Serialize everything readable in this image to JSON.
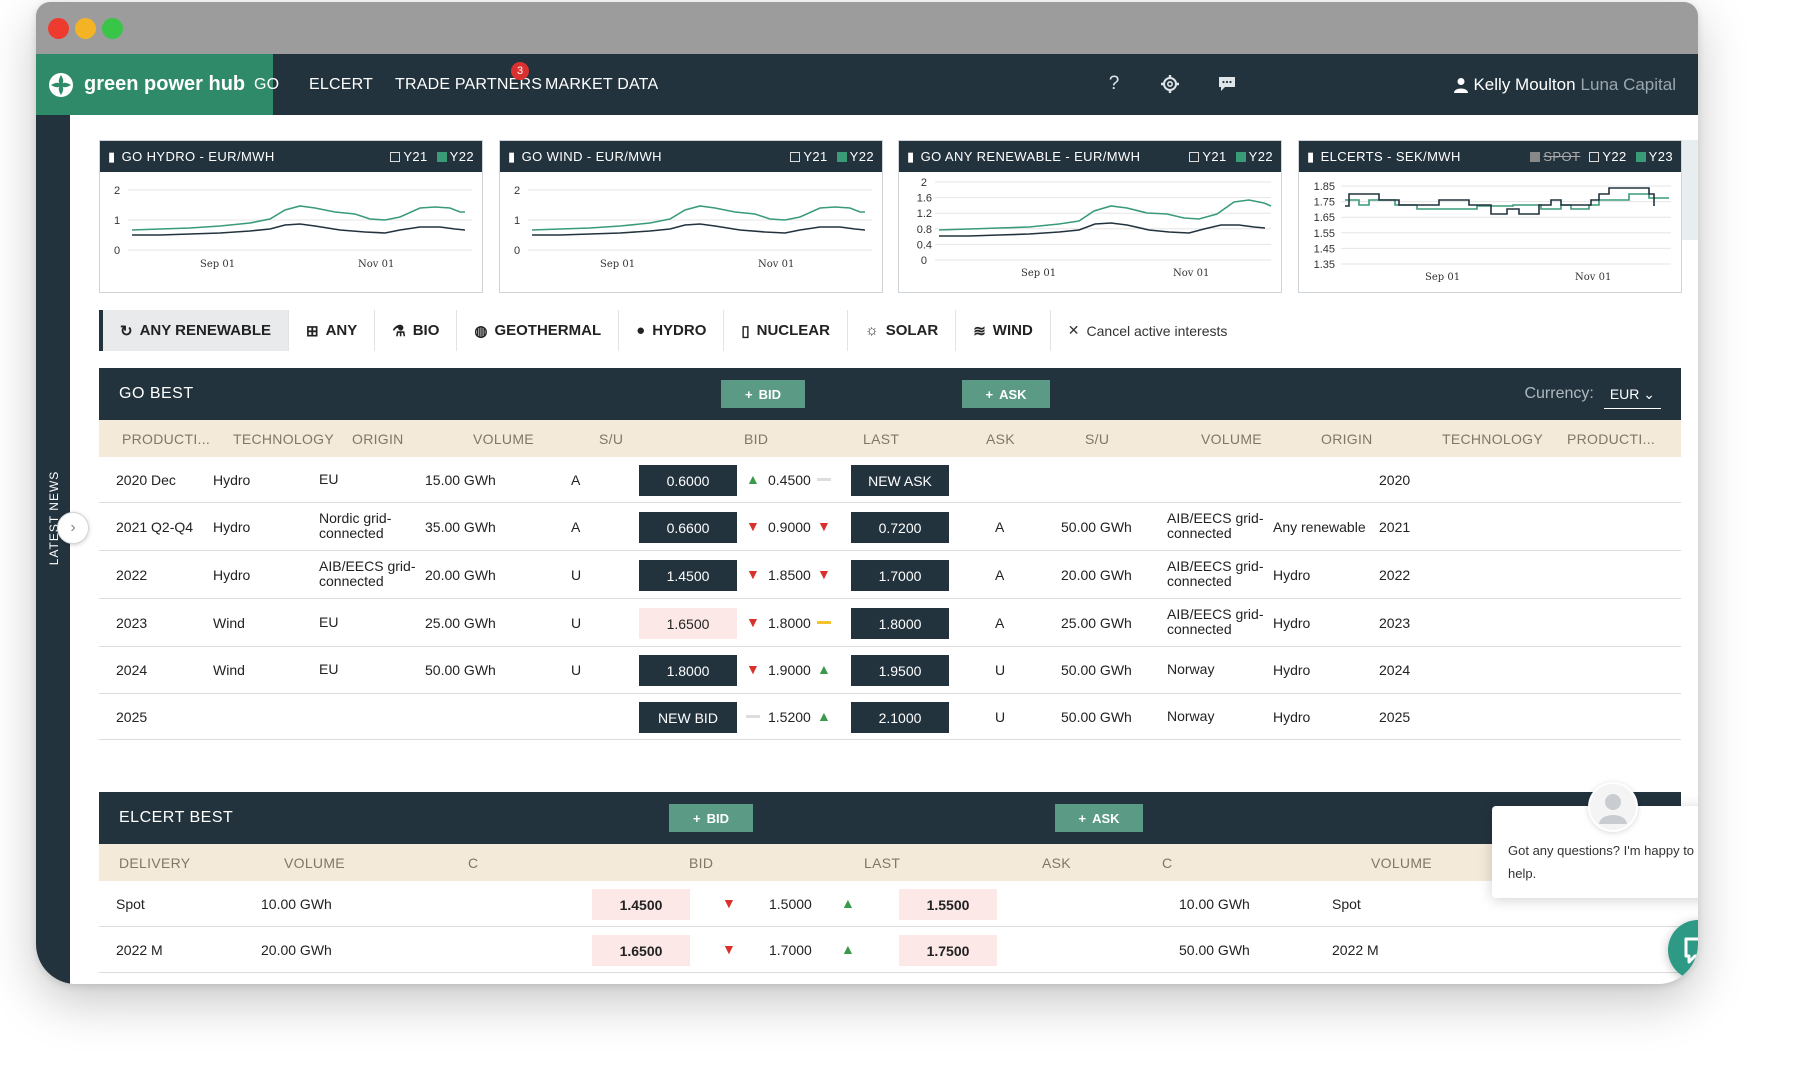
{
  "header": {
    "brand": "green power hub",
    "nav": [
      {
        "label": "GO"
      },
      {
        "label": "ELCERT"
      },
      {
        "label": "TRADE PARTNERS",
        "badge": "3"
      },
      {
        "label": "MARKET DATA"
      }
    ],
    "icons": [
      "help-icon",
      "gear-icon",
      "chat-icon"
    ],
    "user_name": "Kelly Moulton",
    "company": "Luna Capital"
  },
  "sidebar": {
    "label": "LATEST NEWS"
  },
  "charts": [
    {
      "title": "GO HYDRO - EUR/MWH",
      "toggles": [
        {
          "label": "Y21",
          "checked": false
        },
        {
          "label": "Y22",
          "checked": true
        }
      ],
      "yticks": [
        "2",
        "1",
        "0"
      ],
      "xticks": [
        "Sep 01",
        "Nov 01"
      ]
    },
    {
      "title": "GO WIND - EUR/MWH",
      "toggles": [
        {
          "label": "Y21",
          "checked": false
        },
        {
          "label": "Y22",
          "checked": true
        }
      ],
      "yticks": [
        "2",
        "1",
        "0"
      ],
      "xticks": [
        "Sep 01",
        "Nov 01"
      ]
    },
    {
      "title": "GO ANY RENEWABLE - EUR/MWH",
      "toggles": [
        {
          "label": "Y21",
          "checked": false
        },
        {
          "label": "Y22",
          "checked": true
        }
      ],
      "yticks": [
        "2",
        "1.6",
        "1.2",
        "0.8",
        "0.4",
        "0"
      ],
      "xticks": [
        "Sep 01",
        "Nov 01"
      ]
    },
    {
      "title": "ELCERTS - SEK/MWH",
      "toggles": [
        {
          "label": "SPOT",
          "checked": false,
          "disabled": true
        },
        {
          "label": "Y22",
          "checked": false
        },
        {
          "label": "Y23",
          "checked": true
        }
      ],
      "yticks": [
        "1.85",
        "1.75",
        "1.65",
        "1.55",
        "1.45",
        "1.35"
      ],
      "xticks": [
        "Sep 01",
        "Nov 01"
      ]
    }
  ],
  "filters": [
    {
      "label": "ANY RENEWABLE",
      "icon": "recycle-icon",
      "active": true
    },
    {
      "label": "ANY",
      "icon": "grid-icon"
    },
    {
      "label": "BIO",
      "icon": "flask-icon"
    },
    {
      "label": "GEOTHERMAL",
      "icon": "globe-icon"
    },
    {
      "label": "HYDRO",
      "icon": "drop-icon"
    },
    {
      "label": "NUCLEAR",
      "icon": "barrel-icon"
    },
    {
      "label": "SOLAR",
      "icon": "sun-icon"
    },
    {
      "label": "WIND",
      "icon": "wind-icon"
    }
  ],
  "cancel_label": "Cancel active interests",
  "go_best": {
    "title": "GO BEST",
    "bid_button": "BID",
    "ask_button": "ASK",
    "currency_label": "Currency:",
    "currency": "EUR",
    "columns": [
      "PRODUCTI...",
      "TECHNOLOGY",
      "ORIGIN",
      "VOLUME",
      "S/U",
      "BID",
      "LAST",
      "ASK",
      "S/U",
      "VOLUME",
      "ORIGIN",
      "TECHNOLOGY",
      "PRODUCTI..."
    ],
    "rows": [
      {
        "product": "2020 Dec",
        "tech": "Hydro",
        "origin": "EU",
        "volume": "15.00 GWh",
        "su": "A",
        "bid": "0.6000",
        "bid_style": "dark",
        "last_trend": "up",
        "last": "0.4500",
        "ask_trend": "flat",
        "ask": "NEW ASK",
        "ask_style": "dark",
        "ask_su": "",
        "ask_volume": "",
        "ask_origin": "",
        "ask_tech": "",
        "ask_product": "2020"
      },
      {
        "product": "2021 Q2-Q4",
        "tech": "Hydro",
        "origin": "Nordic grid-connected",
        "volume": "35.00 GWh",
        "su": "A",
        "bid": "0.6600",
        "bid_style": "dark",
        "last_trend": "down",
        "last": "0.9000",
        "ask_trend": "down",
        "ask": "0.7200",
        "ask_style": "dark",
        "ask_su": "A",
        "ask_volume": "50.00 GWh",
        "ask_origin": "AIB/EECS grid-connected",
        "ask_tech": "Any renewable",
        "ask_product": "2021"
      },
      {
        "product": "2022",
        "tech": "Hydro",
        "origin": "AIB/EECS grid-connected",
        "volume": "20.00 GWh",
        "su": "U",
        "bid": "1.4500",
        "bid_style": "dark",
        "last_trend": "down",
        "last": "1.8500",
        "ask_trend": "down",
        "ask": "1.7000",
        "ask_style": "dark",
        "ask_su": "A",
        "ask_volume": "20.00 GWh",
        "ask_origin": "AIB/EECS grid-connected",
        "ask_tech": "Hydro",
        "ask_product": "2022"
      },
      {
        "product": "2023",
        "tech": "Wind",
        "origin": "EU",
        "volume": "25.00 GWh",
        "su": "U",
        "bid": "1.6500",
        "bid_style": "pink",
        "last_trend": "down",
        "last": "1.8000",
        "ask_trend": "flat-yellow",
        "ask": "1.8000",
        "ask_style": "dark",
        "ask_su": "A",
        "ask_volume": "25.00 GWh",
        "ask_origin": "AIB/EECS grid-connected",
        "ask_tech": "Hydro",
        "ask_product": "2023"
      },
      {
        "product": "2024",
        "tech": "Wind",
        "origin": "EU",
        "volume": "50.00 GWh",
        "su": "U",
        "bid": "1.8000",
        "bid_style": "dark",
        "last_trend": "down",
        "last": "1.9000",
        "ask_trend": "up",
        "ask": "1.9500",
        "ask_style": "dark",
        "ask_su": "U",
        "ask_volume": "50.00 GWh",
        "ask_origin": "Norway",
        "ask_tech": "Hydro",
        "ask_product": "2024"
      },
      {
        "product": "2025",
        "tech": "",
        "origin": "",
        "volume": "",
        "su": "",
        "bid": "NEW BID",
        "bid_style": "dark",
        "last_trend": "flat",
        "last": "1.5200",
        "ask_trend": "up",
        "ask": "2.1000",
        "ask_style": "dark",
        "ask_su": "U",
        "ask_volume": "50.00 GWh",
        "ask_origin": "Norway",
        "ask_tech": "Hydro",
        "ask_product": "2025"
      }
    ]
  },
  "elcert_best": {
    "title": "ELCERT BEST",
    "bid_button": "BID",
    "ask_button": "ASK",
    "columns": [
      "DELIVERY",
      "VOLUME",
      "C",
      "BID",
      "LAST",
      "ASK",
      "C",
      "VOLUME"
    ],
    "rows": [
      {
        "delivery": "Spot",
        "volume": "10.00 GWh",
        "bid": "1.4500",
        "bid_trend": "down",
        "last": "1.5000",
        "last_trend": "up",
        "ask": "1.5500",
        "ask_volume": "10.00 GWh",
        "ask_delivery": "Spot"
      },
      {
        "delivery": "2022 M",
        "volume": "20.00 GWh",
        "bid": "1.6500",
        "bid_trend": "down",
        "last": "1.7000",
        "last_trend": "up",
        "ask": "1.7500",
        "ask_volume": "50.00 GWh",
        "ask_delivery": "2022 M"
      }
    ]
  },
  "chat": {
    "message": "Got any questions? I'm happy to help."
  },
  "colors": {
    "brand": "#2e8a69",
    "dark": "#23333e",
    "accent_button": "#5b9a84",
    "header_row": "#f3ead9",
    "down": "#d9302c",
    "up": "#3a9a4b"
  }
}
